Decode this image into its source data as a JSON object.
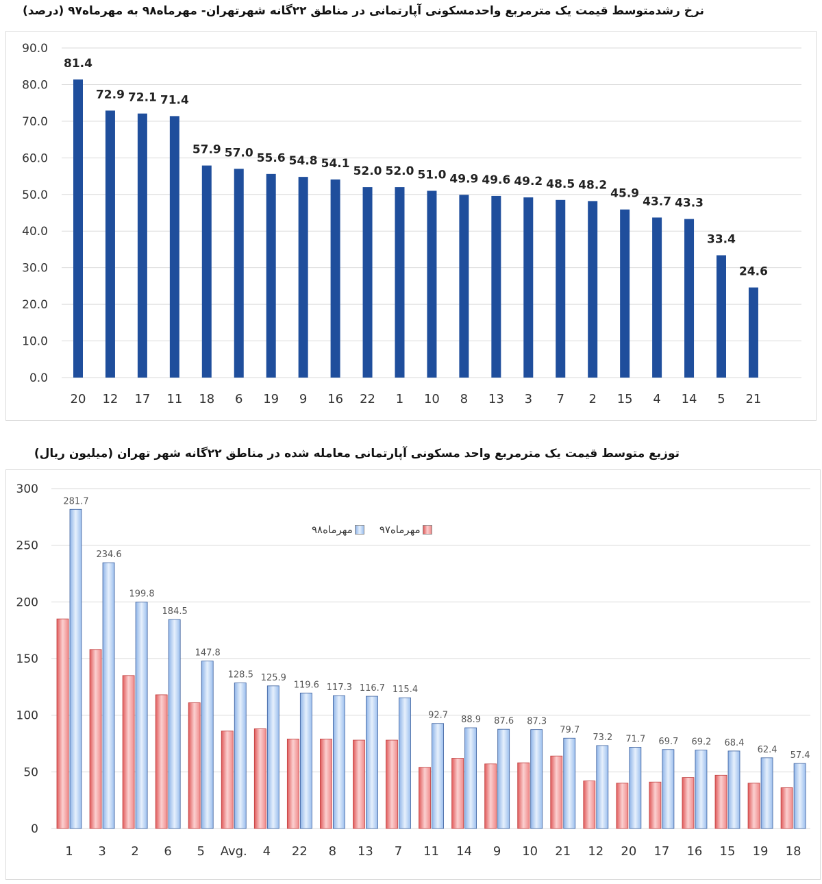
{
  "chart_data": [
    {
      "type": "bar",
      "title": "نرخ رشدمتوسط قیمت یک مترمربع واحدمسکونی آپارتمانی در مناطق ۲۲گانه شهرتهران- مهرماه۹۸ به مهرماه۹۷ (درصد)",
      "categories": [
        "20",
        "12",
        "17",
        "11",
        "18",
        "6",
        "19",
        "9",
        "16",
        "22",
        "1",
        "10",
        "8",
        "13",
        "3",
        "7",
        "2",
        "15",
        "4",
        "14",
        "5",
        "21"
      ],
      "values": [
        81.4,
        72.9,
        72.1,
        71.4,
        57.9,
        57.0,
        55.6,
        54.8,
        54.1,
        52.0,
        52.0,
        51.0,
        49.9,
        49.6,
        49.2,
        48.5,
        48.2,
        45.9,
        43.7,
        43.3,
        33.4,
        24.6
      ],
      "value_labels": [
        "81.4",
        "72.9",
        "72.1",
        "71.4",
        "57.9",
        "57.0",
        "55.6",
        "54.8",
        "54.1",
        "52.0",
        "52.0",
        "51.0",
        "49.9",
        "49.6",
        "49.2",
        "48.5",
        "48.2",
        "45.9",
        "43.7",
        "43.3",
        "33.4",
        "24.6"
      ],
      "ylim": [
        0,
        90
      ],
      "yticks": [
        "0.0",
        "10.0",
        "20.0",
        "30.0",
        "40.0",
        "50.0",
        "60.0",
        "70.0",
        "80.0",
        "90.0"
      ],
      "grid": true,
      "colors": {
        "bar": "#1f4e9c"
      }
    },
    {
      "type": "bar",
      "title": "توزیع متوسط قیمت یک مترمربع واحد مسکونی آپارتمانی معامله شده در مناطق ۲۲گانه شهر تهران (میلیون ریال)",
      "categories": [
        "1",
        "3",
        "2",
        "6",
        "5",
        "Avg.",
        "4",
        "22",
        "8",
        "13",
        "7",
        "11",
        "14",
        "9",
        "10",
        "21",
        "12",
        "20",
        "17",
        "16",
        "15",
        "19",
        "18"
      ],
      "series": [
        {
          "name": "مهرماه۹۷",
          "values": [
            185,
            158,
            135,
            118,
            111,
            86,
            88,
            79,
            79,
            78,
            78,
            54,
            62,
            57,
            58,
            64,
            42,
            40,
            41,
            45,
            47,
            40,
            36
          ]
        },
        {
          "name": "مهرماه۹۸",
          "values": [
            281.7,
            234.6,
            199.8,
            184.5,
            147.8,
            128.5,
            125.9,
            119.6,
            117.3,
            116.7,
            115.4,
            92.7,
            88.9,
            87.6,
            87.3,
            79.7,
            73.2,
            71.7,
            69.7,
            69.2,
            68.4,
            62.4,
            57.4
          ]
        }
      ],
      "value_labels": [
        "281.7",
        "234.6",
        "199.8",
        "184.5",
        "147.8",
        "128.5",
        "125.9",
        "119.6",
        "117.3",
        "116.7",
        "115.4",
        "92.7",
        "88.9",
        "87.6",
        "87.3",
        "79.7",
        "73.2",
        "71.7",
        "69.7",
        "69.2",
        "68.4",
        "62.4",
        "57.4"
      ],
      "ylim": [
        0,
        300
      ],
      "yticks": [
        "0",
        "50",
        "100",
        "150",
        "200",
        "250",
        "300"
      ],
      "grid": true,
      "legend": "top-center",
      "colors": {
        "s97": "#f08080",
        "s98": "#a9c8f0"
      }
    }
  ]
}
